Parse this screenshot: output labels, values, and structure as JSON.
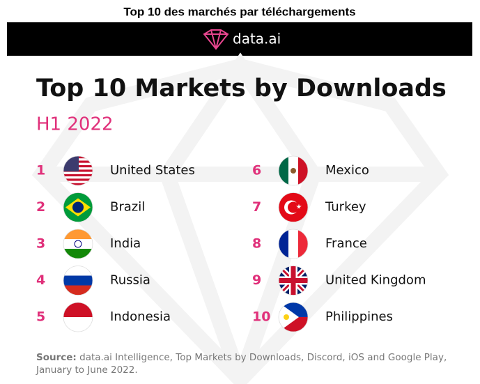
{
  "page_title": "Top 10 des marchés par téléchargements",
  "banner": {
    "brand": "data.ai"
  },
  "title": "Top 10 Markets by Downloads",
  "subtitle": "H1 2022",
  "markets": [
    {
      "rank": 1,
      "name": "United States"
    },
    {
      "rank": 2,
      "name": "Brazil"
    },
    {
      "rank": 3,
      "name": "India"
    },
    {
      "rank": 4,
      "name": "Russia"
    },
    {
      "rank": 5,
      "name": "Indonesia"
    },
    {
      "rank": 6,
      "name": "Mexico"
    },
    {
      "rank": 7,
      "name": "Turkey"
    },
    {
      "rank": 8,
      "name": "France"
    },
    {
      "rank": 9,
      "name": "United Kingdom"
    },
    {
      "rank": 10,
      "name": "Philippines"
    }
  ],
  "source": {
    "label": "Source:",
    "line1": "data.ai Intelligence, Top Markets by Downloads, Discord, iOS and Google Play,",
    "line2": "January to June 2022."
  }
}
